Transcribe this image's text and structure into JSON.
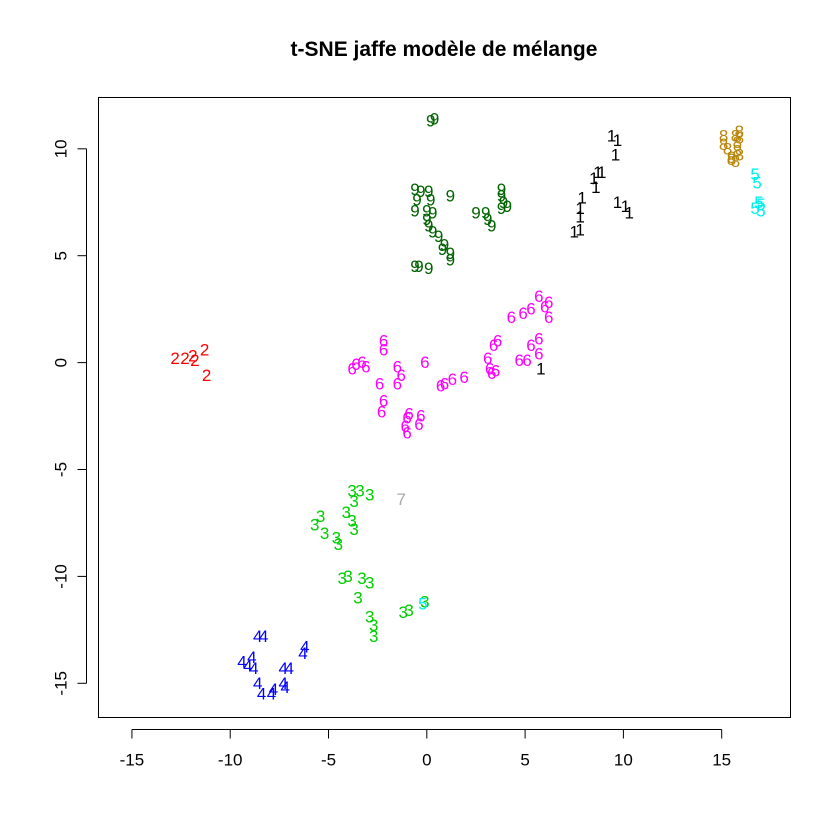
{
  "chart_data": {
    "type": "scatter",
    "title": "t-SNE jaffe modèle de mélange",
    "xlabel": "",
    "ylabel": "",
    "xlim": [
      -16.7,
      18.5
    ],
    "ylim": [
      -16.6,
      12.4
    ],
    "xticks": [
      -15,
      -10,
      -5,
      0,
      5,
      10,
      15
    ],
    "yticks": [
      -15,
      -10,
      -5,
      0,
      5,
      10
    ],
    "grid": false,
    "legend": "none",
    "series": [
      {
        "color": "#ff0000",
        "points": [
          {
            "x": -12.8,
            "y": 0.2,
            "label": "2"
          },
          {
            "x": -12.3,
            "y": 0.2,
            "label": "2"
          },
          {
            "x": -11.9,
            "y": 0.3,
            "label": "2"
          },
          {
            "x": -11.3,
            "y": 0.6,
            "label": "2"
          },
          {
            "x": -11.2,
            "y": -0.6,
            "label": "2"
          },
          {
            "x": -11.8,
            "y": 0.1,
            "label": "2"
          }
        ]
      },
      {
        "color": "#00cd00",
        "points": [
          {
            "x": -3.8,
            "y": -6.0,
            "label": "3"
          },
          {
            "x": -3.4,
            "y": -6.0,
            "label": "3"
          },
          {
            "x": -2.9,
            "y": -6.2,
            "label": "3"
          },
          {
            "x": -3.7,
            "y": -6.5,
            "label": "3"
          },
          {
            "x": -5.4,
            "y": -7.2,
            "label": "3"
          },
          {
            "x": -5.7,
            "y": -7.6,
            "label": "3"
          },
          {
            "x": -4.1,
            "y": -7.0,
            "label": "3"
          },
          {
            "x": -3.8,
            "y": -7.4,
            "label": "3"
          },
          {
            "x": -3.7,
            "y": -7.8,
            "label": "3"
          },
          {
            "x": -5.2,
            "y": -8.0,
            "label": "3"
          },
          {
            "x": -4.6,
            "y": -8.2,
            "label": "3"
          },
          {
            "x": -4.5,
            "y": -8.5,
            "label": "3"
          },
          {
            "x": -4.3,
            "y": -10.1,
            "label": "3"
          },
          {
            "x": -4.0,
            "y": -10.0,
            "label": "3"
          },
          {
            "x": -3.3,
            "y": -10.1,
            "label": "3"
          },
          {
            "x": -2.9,
            "y": -10.3,
            "label": "3"
          },
          {
            "x": -3.5,
            "y": -11.0,
            "label": "3"
          },
          {
            "x": -2.9,
            "y": -11.9,
            "label": "3"
          },
          {
            "x": -2.7,
            "y": -12.3,
            "label": "3"
          },
          {
            "x": -2.7,
            "y": -12.8,
            "label": "3"
          },
          {
            "x": -1.2,
            "y": -11.7,
            "label": "3"
          },
          {
            "x": -0.9,
            "y": -11.6,
            "label": "3"
          },
          {
            "x": -0.1,
            "y": -11.2,
            "label": "3"
          }
        ]
      },
      {
        "color": "#0000ff",
        "points": [
          {
            "x": -8.6,
            "y": -12.8,
            "label": "4"
          },
          {
            "x": -8.3,
            "y": -12.8,
            "label": "4"
          },
          {
            "x": -9.4,
            "y": -14.0,
            "label": "4"
          },
          {
            "x": -8.9,
            "y": -13.8,
            "label": "4"
          },
          {
            "x": -8.8,
            "y": -14.3,
            "label": "4"
          },
          {
            "x": -9.1,
            "y": -14.2,
            "label": "4"
          },
          {
            "x": -6.3,
            "y": -13.6,
            "label": "4"
          },
          {
            "x": -6.2,
            "y": -13.3,
            "label": "4"
          },
          {
            "x": -7.3,
            "y": -14.3,
            "label": "4"
          },
          {
            "x": -7.0,
            "y": -14.3,
            "label": "4"
          },
          {
            "x": -8.6,
            "y": -15.0,
            "label": "4"
          },
          {
            "x": -7.3,
            "y": -15.0,
            "label": "4"
          },
          {
            "x": -7.2,
            "y": -15.2,
            "label": "4"
          },
          {
            "x": -8.4,
            "y": -15.5,
            "label": "4"
          },
          {
            "x": -7.9,
            "y": -15.5,
            "label": "4"
          },
          {
            "x": -7.8,
            "y": -15.3,
            "label": "4"
          }
        ]
      },
      {
        "color": "#ff00ff",
        "points": [
          {
            "x": 5.7,
            "y": 3.1,
            "label": "6"
          },
          {
            "x": 6.2,
            "y": 2.8,
            "label": "6"
          },
          {
            "x": 6.0,
            "y": 2.6,
            "label": "6"
          },
          {
            "x": 5.3,
            "y": 2.5,
            "label": "6"
          },
          {
            "x": 4.9,
            "y": 2.3,
            "label": "6"
          },
          {
            "x": 6.2,
            "y": 2.1,
            "label": "6"
          },
          {
            "x": 4.3,
            "y": 2.1,
            "label": "6"
          },
          {
            "x": 3.6,
            "y": 1.0,
            "label": "6"
          },
          {
            "x": 3.4,
            "y": 0.8,
            "label": "6"
          },
          {
            "x": 5.7,
            "y": 1.1,
            "label": "6"
          },
          {
            "x": 5.3,
            "y": 0.8,
            "label": "6"
          },
          {
            "x": 5.7,
            "y": 0.4,
            "label": "6"
          },
          {
            "x": 4.7,
            "y": 0.1,
            "label": "6"
          },
          {
            "x": 5.1,
            "y": 0.1,
            "label": "6"
          },
          {
            "x": 3.1,
            "y": 0.2,
            "label": "6"
          },
          {
            "x": 3.2,
            "y": -0.3,
            "label": "6"
          },
          {
            "x": 3.3,
            "y": -0.5,
            "label": "6"
          },
          {
            "x": 3.5,
            "y": -0.4,
            "label": "6"
          },
          {
            "x": -2.2,
            "y": 1.0,
            "label": "6"
          },
          {
            "x": -2.2,
            "y": 0.6,
            "label": "6"
          },
          {
            "x": -0.1,
            "y": 0.0,
            "label": "6"
          },
          {
            "x": -1.5,
            "y": -0.2,
            "label": "6"
          },
          {
            "x": -1.3,
            "y": -0.6,
            "label": "6"
          },
          {
            "x": -3.3,
            "y": 0.0,
            "label": "6"
          },
          {
            "x": -3.6,
            "y": -0.1,
            "label": "6"
          },
          {
            "x": -3.1,
            "y": -0.2,
            "label": "6"
          },
          {
            "x": -3.8,
            "y": -0.3,
            "label": "6"
          },
          {
            "x": -2.4,
            "y": -1.0,
            "label": "6"
          },
          {
            "x": -1.5,
            "y": -1.0,
            "label": "6"
          },
          {
            "x": 1.9,
            "y": -0.7,
            "label": "6"
          },
          {
            "x": 1.3,
            "y": -0.8,
            "label": "6"
          },
          {
            "x": 0.9,
            "y": -1.0,
            "label": "6"
          },
          {
            "x": 0.7,
            "y": -1.1,
            "label": "6"
          },
          {
            "x": -2.2,
            "y": -1.8,
            "label": "6"
          },
          {
            "x": -2.3,
            "y": -2.3,
            "label": "6"
          },
          {
            "x": -0.9,
            "y": -2.4,
            "label": "6"
          },
          {
            "x": -1.0,
            "y": -2.6,
            "label": "6"
          },
          {
            "x": -0.3,
            "y": -2.5,
            "label": "6"
          },
          {
            "x": -0.4,
            "y": -2.9,
            "label": "6"
          },
          {
            "x": -1.1,
            "y": -3.0,
            "label": "6"
          },
          {
            "x": -1.0,
            "y": -3.3,
            "label": "6"
          }
        ]
      },
      {
        "color": "#006400",
        "points": [
          {
            "x": 0.2,
            "y": 11.3,
            "label": "9"
          },
          {
            "x": 0.4,
            "y": 11.4,
            "label": "9"
          },
          {
            "x": -0.6,
            "y": 8.1,
            "label": "9"
          },
          {
            "x": -0.3,
            "y": 8.0,
            "label": "9"
          },
          {
            "x": 0.1,
            "y": 8.0,
            "label": "9"
          },
          {
            "x": 1.2,
            "y": 7.8,
            "label": "9"
          },
          {
            "x": -0.5,
            "y": 7.6,
            "label": "9"
          },
          {
            "x": 0.2,
            "y": 7.6,
            "label": "9"
          },
          {
            "x": -0.6,
            "y": 7.1,
            "label": "9"
          },
          {
            "x": 0.0,
            "y": 7.1,
            "label": "9"
          },
          {
            "x": 0.3,
            "y": 7.0,
            "label": "9"
          },
          {
            "x": 0.0,
            "y": 6.7,
            "label": "9"
          },
          {
            "x": 0.1,
            "y": 6.4,
            "label": "9"
          },
          {
            "x": 0.3,
            "y": 6.1,
            "label": "9"
          },
          {
            "x": 0.6,
            "y": 5.9,
            "label": "9"
          },
          {
            "x": 0.9,
            "y": 5.5,
            "label": "9"
          },
          {
            "x": 0.8,
            "y": 5.3,
            "label": "9"
          },
          {
            "x": 1.2,
            "y": 5.1,
            "label": "9"
          },
          {
            "x": 1.2,
            "y": 4.8,
            "label": "9"
          },
          {
            "x": -0.6,
            "y": 4.5,
            "label": "9"
          },
          {
            "x": -0.4,
            "y": 4.5,
            "label": "9"
          },
          {
            "x": 0.1,
            "y": 4.4,
            "label": "9"
          },
          {
            "x": 3.8,
            "y": 8.1,
            "label": "9"
          },
          {
            "x": 3.8,
            "y": 7.8,
            "label": "9"
          },
          {
            "x": 3.9,
            "y": 7.5,
            "label": "9"
          },
          {
            "x": 4.1,
            "y": 7.3,
            "label": "9"
          },
          {
            "x": 3.8,
            "y": 7.2,
            "label": "9"
          },
          {
            "x": 2.5,
            "y": 7.0,
            "label": "9"
          },
          {
            "x": 3.0,
            "y": 7.0,
            "label": "9"
          },
          {
            "x": 3.1,
            "y": 6.7,
            "label": "9"
          },
          {
            "x": 3.3,
            "y": 6.4,
            "label": "9"
          }
        ]
      },
      {
        "color": "#000000",
        "points": [
          {
            "x": 9.4,
            "y": 10.6,
            "label": "1"
          },
          {
            "x": 9.7,
            "y": 10.4,
            "label": "1"
          },
          {
            "x": 9.6,
            "y": 9.7,
            "label": "1"
          },
          {
            "x": 8.7,
            "y": 8.9,
            "label": "1"
          },
          {
            "x": 8.9,
            "y": 8.9,
            "label": "1"
          },
          {
            "x": 8.5,
            "y": 8.6,
            "label": "1"
          },
          {
            "x": 8.6,
            "y": 8.2,
            "label": "1"
          },
          {
            "x": 7.9,
            "y": 7.7,
            "label": "1"
          },
          {
            "x": 7.8,
            "y": 7.2,
            "label": "1"
          },
          {
            "x": 7.8,
            "y": 6.8,
            "label": "1"
          },
          {
            "x": 9.7,
            "y": 7.5,
            "label": "1"
          },
          {
            "x": 10.1,
            "y": 7.3,
            "label": "1"
          },
          {
            "x": 10.3,
            "y": 7.0,
            "label": "1"
          },
          {
            "x": 7.5,
            "y": 6.1,
            "label": "1"
          },
          {
            "x": 7.8,
            "y": 6.2,
            "label": "1"
          },
          {
            "x": 5.8,
            "y": -0.3,
            "label": "1"
          }
        ]
      },
      {
        "color": "#b8860b",
        "points": [
          {
            "x": 15.9,
            "y": 10.8,
            "label": "8"
          },
          {
            "x": 15.7,
            "y": 10.6,
            "label": "8"
          },
          {
            "x": 15.1,
            "y": 10.6,
            "label": "8"
          },
          {
            "x": 15.9,
            "y": 10.5,
            "label": "8"
          },
          {
            "x": 15.8,
            "y": 10.3,
            "label": "8"
          },
          {
            "x": 15.1,
            "y": 10.2,
            "label": "8"
          },
          {
            "x": 15.3,
            "y": 10.0,
            "label": "8"
          },
          {
            "x": 15.8,
            "y": 9.9,
            "label": "8"
          },
          {
            "x": 15.5,
            "y": 9.6,
            "label": "8"
          },
          {
            "x": 15.9,
            "y": 9.7,
            "label": "8"
          },
          {
            "x": 15.7,
            "y": 9.4,
            "label": "8"
          },
          {
            "x": 15.5,
            "y": 9.5,
            "label": "8"
          }
        ]
      },
      {
        "color": "#00eeee",
        "points": [
          {
            "x": 16.7,
            "y": 8.8,
            "label": "5"
          },
          {
            "x": 16.8,
            "y": 8.4,
            "label": "5"
          },
          {
            "x": 16.9,
            "y": 7.5,
            "label": "5"
          },
          {
            "x": 17.0,
            "y": 7.4,
            "label": "5"
          },
          {
            "x": 16.7,
            "y": 7.2,
            "label": "5"
          },
          {
            "x": 17.0,
            "y": 7.1,
            "label": "5"
          },
          {
            "x": -0.2,
            "y": -11.3,
            "label": "5"
          }
        ]
      },
      {
        "color": "#a9a9a9",
        "points": [
          {
            "x": -1.3,
            "y": -6.4,
            "label": "7"
          }
        ]
      }
    ]
  }
}
